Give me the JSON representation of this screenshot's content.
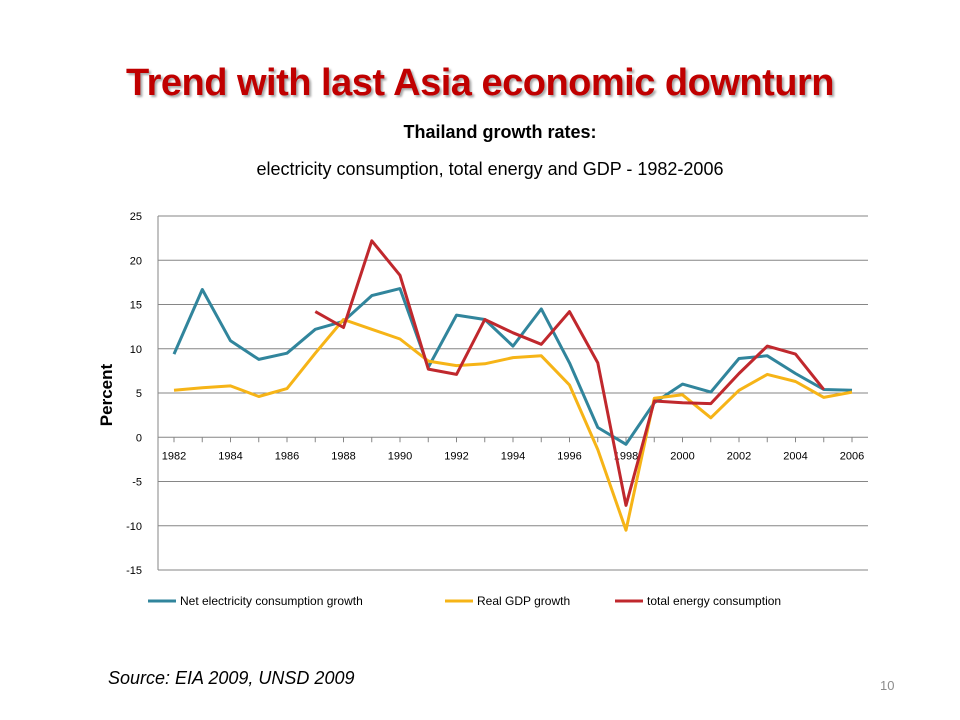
{
  "slide": {
    "title": "Trend with last Asia economic downturn",
    "source": "Source: EIA 2009, UNSD  2009",
    "page_number": "10"
  },
  "chart_data": {
    "type": "line",
    "title": "Thailand growth rates:",
    "subtitle": "electricity consumption, total energy and GDP - 1982-2006",
    "xlabel": "",
    "ylabel": "Percent",
    "ylim": [
      -15,
      25
    ],
    "yticks": [
      25,
      20,
      15,
      10,
      5,
      0,
      -5,
      -10,
      -15
    ],
    "xlim": [
      1982,
      2006
    ],
    "xticks": [
      1982,
      1984,
      1986,
      1988,
      1990,
      1992,
      1994,
      1996,
      1998,
      2000,
      2002,
      2004,
      2006
    ],
    "grid": true,
    "legend": "bottom",
    "series": [
      {
        "name": "Net electricity consumption growth",
        "color": "#31859c",
        "x": [
          1982,
          1983,
          1984,
          1985,
          1986,
          1987,
          1988,
          1989,
          1990,
          1991,
          1992,
          1993,
          1994,
          1995,
          1996,
          1997,
          1998,
          1999,
          2000,
          2001,
          2002,
          2003,
          2004,
          2005,
          2006
        ],
        "values": [
          9.4,
          16.7,
          10.9,
          8.8,
          9.5,
          12.2,
          13.1,
          16.0,
          16.8,
          7.9,
          13.8,
          13.3,
          10.3,
          14.5,
          8.4,
          1.1,
          -0.8,
          3.9,
          6.0,
          5.1,
          8.9,
          9.2,
          7.2,
          5.4,
          5.3
        ]
      },
      {
        "name": "Real GDP growth",
        "color": "#f6b417",
        "x": [
          1982,
          1983,
          1984,
          1985,
          1986,
          1987,
          1988,
          1989,
          1990,
          1991,
          1992,
          1993,
          1994,
          1995,
          1996,
          1997,
          1998,
          1999,
          2000,
          2001,
          2002,
          2003,
          2004,
          2005,
          2006
        ],
        "values": [
          5.3,
          5.6,
          5.8,
          4.6,
          5.5,
          9.5,
          13.3,
          12.2,
          11.1,
          8.6,
          8.1,
          8.3,
          9.0,
          9.2,
          5.9,
          -1.4,
          -10.5,
          4.4,
          4.8,
          2.2,
          5.3,
          7.1,
          6.3,
          4.5,
          5.1
        ]
      },
      {
        "name": "total energy consumption",
        "color": "#c0282d",
        "x": [
          1987,
          1988,
          1989,
          1990,
          1991,
          1992,
          1993,
          1994,
          1995,
          1996,
          1997,
          1998,
          1999,
          2000,
          2001,
          2002,
          2003,
          2004,
          2005
        ],
        "values": [
          14.2,
          12.4,
          22.2,
          18.3,
          7.7,
          7.1,
          13.3,
          11.8,
          10.5,
          14.2,
          8.4,
          -7.7,
          4.1,
          3.9,
          3.8,
          7.2,
          10.3,
          9.4,
          5.4
        ]
      }
    ]
  }
}
